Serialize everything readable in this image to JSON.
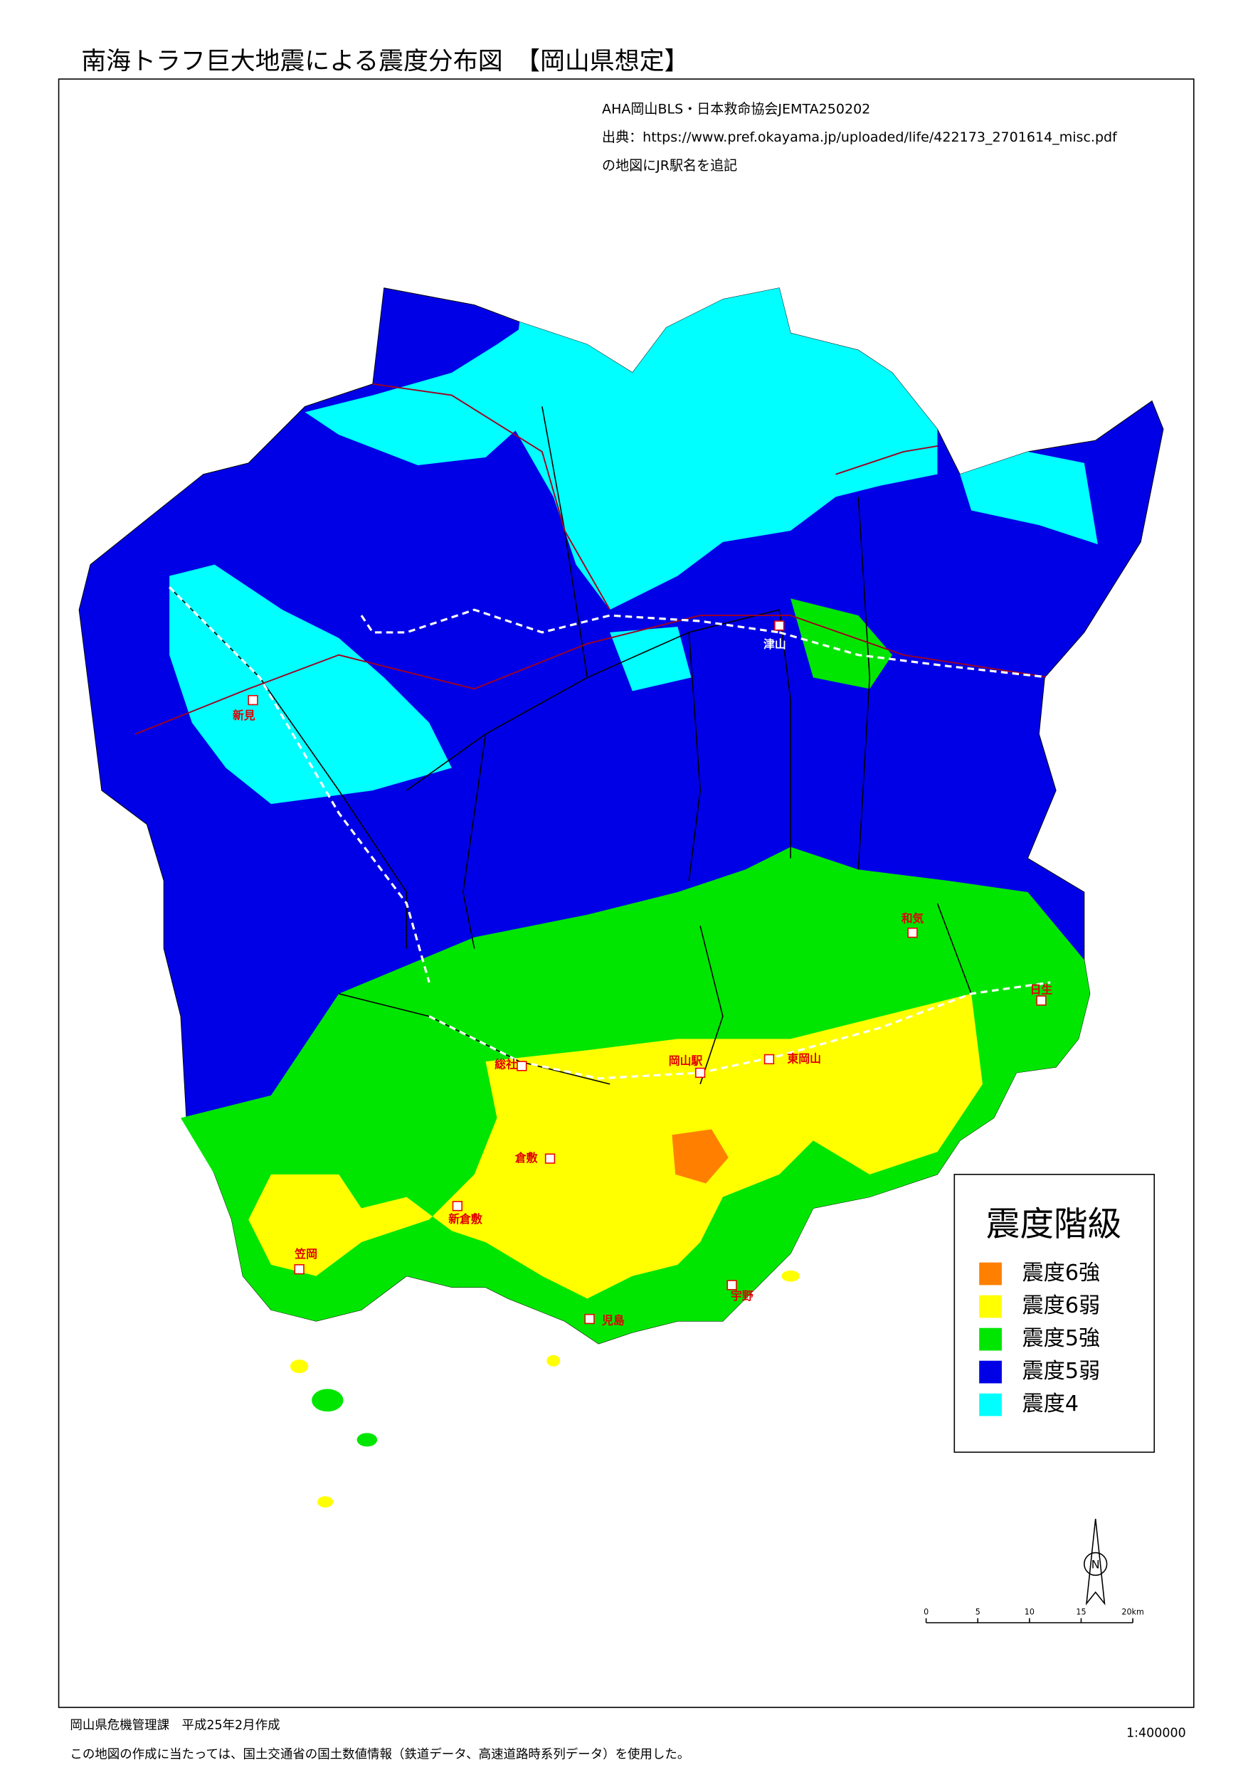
{
  "title": "南海トラフ巨大地震による震度分布図　【岡山県想定】",
  "notes": [
    "AHA岡山BLS・日本救命協会JEMTA250202",
    "出典：https://www.pref.okayama.jp/uploaded/life/422173_2701614_misc.pdf",
    "の地図にJR駅名を追記"
  ],
  "stations": [
    {
      "name": "津山"
    },
    {
      "name": "新見"
    },
    {
      "name": "和気"
    },
    {
      "name": "日生"
    },
    {
      "name": "総社"
    },
    {
      "name": "岡山駅"
    },
    {
      "name": "東岡山"
    },
    {
      "name": "倉敷"
    },
    {
      "name": "新倉敷"
    },
    {
      "name": "笠岡"
    },
    {
      "name": "宇野"
    },
    {
      "name": "児島"
    }
  ],
  "legend": {
    "title": "震度階級",
    "items": [
      {
        "label": "震度6強",
        "color": "#ff8000"
      },
      {
        "label": "震度6弱",
        "color": "#ffff00"
      },
      {
        "label": "震度5強",
        "color": "#00e600"
      },
      {
        "label": "震度5弱",
        "color": "#0000e6"
      },
      {
        "label": "震度4",
        "color": "#00ffff"
      }
    ]
  },
  "scale_bar": {
    "ticks": [
      0,
      5,
      10,
      15,
      {
        "value": 20,
        "label": "20km"
      }
    ]
  },
  "north": "N",
  "scale": "1:400000",
  "footer": {
    "author": "岡山県危機管理課　平成25年2月作成",
    "note": "この地図の作成に当たっては、国土交通省の国土数値情報（鉄道データ、高速道路時系列データ）を使用した。"
  }
}
